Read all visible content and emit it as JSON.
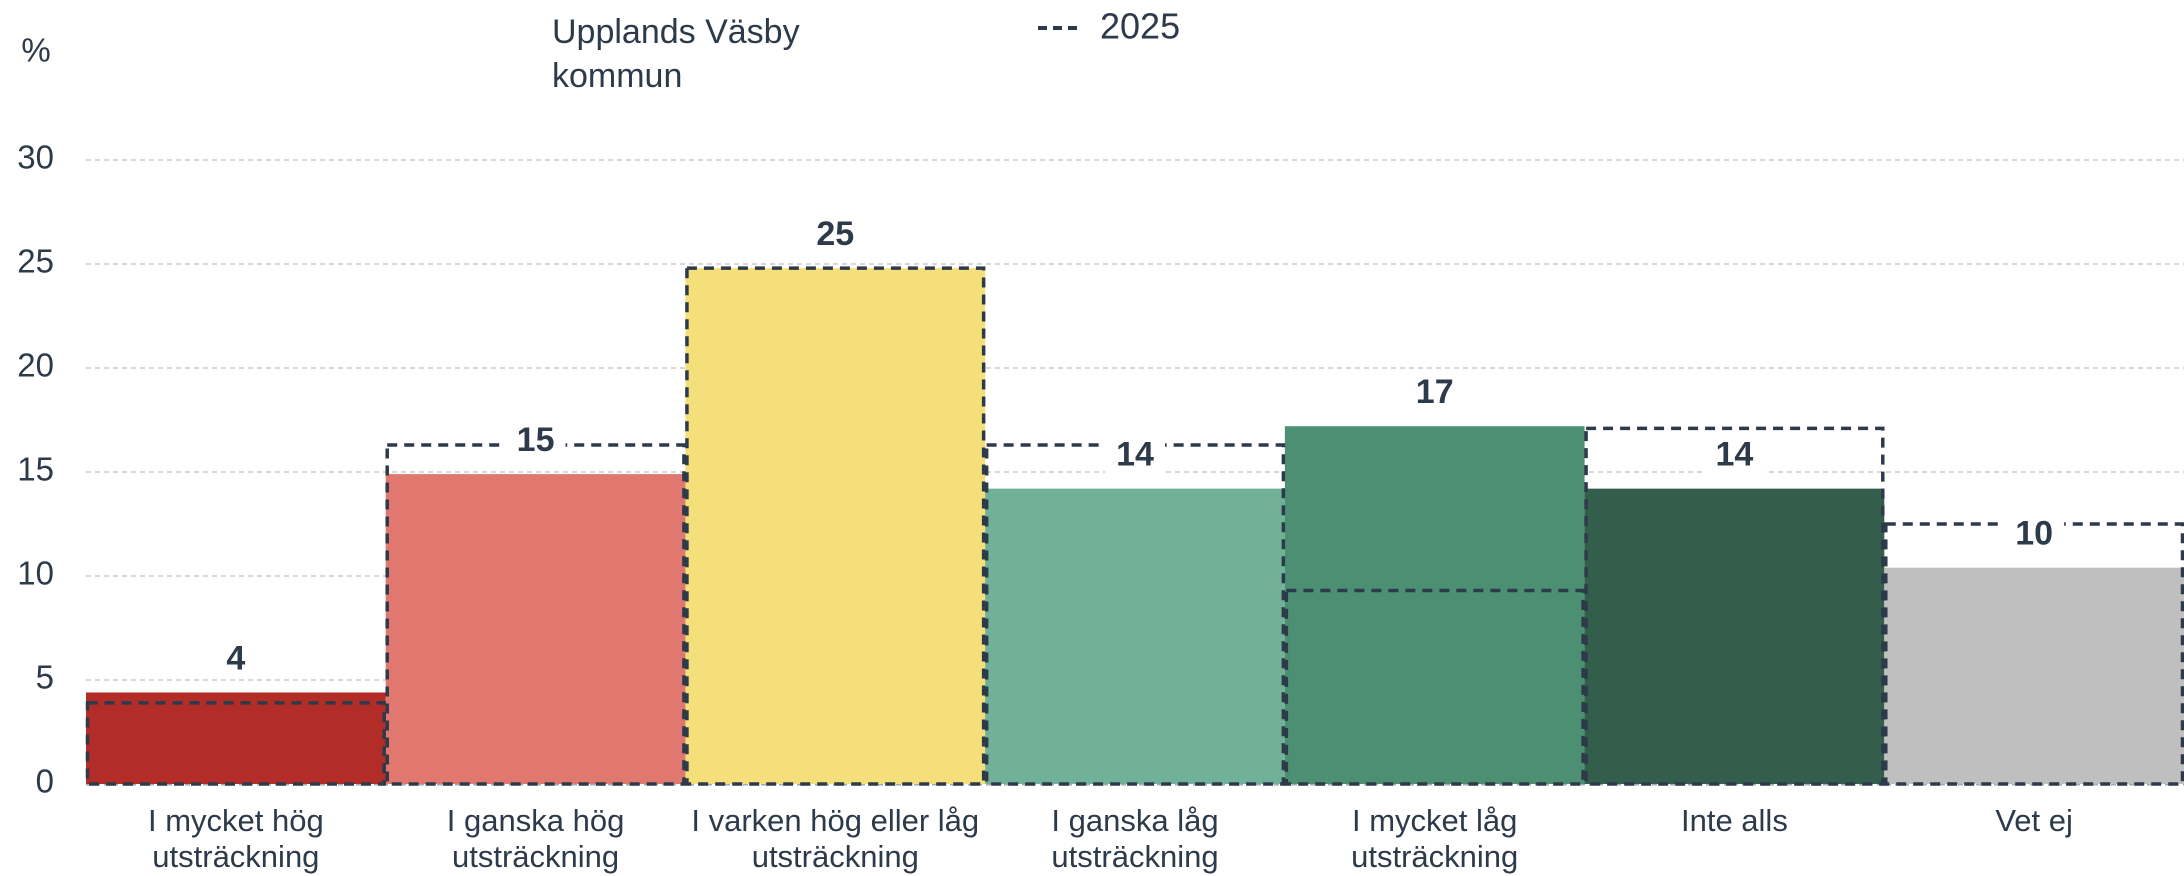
{
  "chart_data": {
    "type": "bar",
    "y_axis_label": "%",
    "categories": [
      "I mycket hög utsträckning",
      "I ganska hög utsträckning",
      "I varken hög eller låg utsträckning",
      "I ganska låg utsträckning",
      "I mycket låg utsträckning",
      "Inte alls",
      "Vet ej"
    ],
    "series": [
      {
        "name": "Upplands Väsby kommun",
        "colors": [
          "#b22d27",
          "#e07870",
          "#f5df7a",
          "#70b198",
          "#4c8f72",
          "#335e4c",
          "#bfbfbf"
        ],
        "values": [
          4.4,
          14.9,
          24.8,
          14.2,
          17.2,
          14.2,
          10.4
        ],
        "value_labels": [
          "4",
          "15",
          "25",
          "14",
          "17",
          "14",
          "10"
        ]
      },
      {
        "name": "2025",
        "color": "#2d3a4a",
        "style": "dashed",
        "values": [
          3.9,
          16.3,
          24.8,
          16.3,
          9.3,
          17.1,
          12.5
        ]
      }
    ],
    "ylim": [
      0,
      30
    ],
    "yticks": [
      0,
      5,
      10,
      15,
      20,
      25,
      30
    ],
    "grid": true
  }
}
